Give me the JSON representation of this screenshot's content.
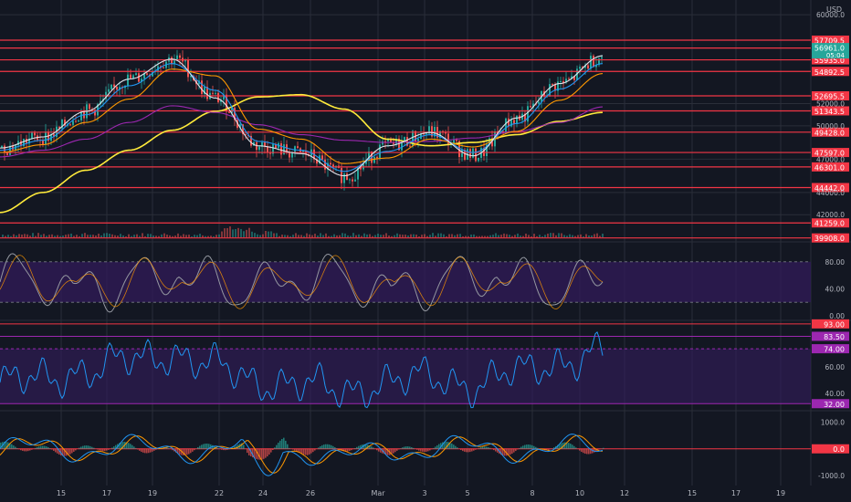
{
  "header": {
    "currency": "USD"
  },
  "colors": {
    "background": "#131722",
    "grid": "#2a2e39",
    "support_line": "#f23645",
    "ma_yellow": "#ffeb3b",
    "ma_purple": "#9c27b0",
    "ma_blue": "#2196f3",
    "ma_orange": "#ff9800",
    "ma_white": "#e0e3eb",
    "candle_up": "#26a69a",
    "candle_down": "#ef5350",
    "band_fill": "#311b59",
    "band_mid": "#5d3f9a",
    "price_badge": "#26a69a"
  },
  "chart_data": [
    {
      "type": "line",
      "panel": "price",
      "x_tick_labels": [
        "15",
        "17",
        "19",
        "22",
        "24",
        "26",
        "Mar",
        "3",
        "5",
        "8",
        "10",
        "12",
        "15",
        "17",
        "19"
      ],
      "y_tick_labels": [
        "60000.0",
        "57000.0",
        "52000.0",
        "50000.0",
        "47000.0",
        "44000.0",
        "42000.0"
      ],
      "ylim": [
        39800,
        60500
      ],
      "horizontal_levels": [
        "57709.5",
        "56997.5",
        "55935.0",
        "54892.5",
        "52695.5",
        "51343.5",
        "49428.0",
        "47597.0",
        "46301.0",
        "44442.0",
        "41259.0",
        "39908.0"
      ],
      "last_price": "56961.0",
      "countdown": "05:04",
      "series": [
        {
          "color": "#ffeb3b",
          "values": [
            42200,
            44000,
            46000,
            47800,
            49600,
            51300,
            52600,
            52800,
            51500,
            48800,
            48200,
            48500,
            49200,
            50400,
            51200
          ]
        },
        {
          "color": "#9c27b0",
          "values": [
            47200,
            47800,
            48800,
            50300,
            51800,
            51200,
            50100,
            49200,
            48700,
            48500,
            48600,
            48900,
            49500,
            50300,
            51700
          ]
        },
        {
          "color": "#ff9800",
          "values": [
            47600,
            48300,
            50300,
            52400,
            55100,
            54500,
            49700,
            48800,
            46600,
            47100,
            48800,
            48100,
            49500,
            52300,
            54700
          ]
        },
        {
          "color": "#2196f3",
          "values": [
            47800,
            48700,
            51000,
            53600,
            55600,
            53200,
            48600,
            47800,
            45900,
            47700,
            49200,
            47600,
            50200,
            53300,
            55600
          ]
        },
        {
          "color": "#e0e3eb",
          "values": [
            48000,
            49000,
            51300,
            54200,
            56000,
            52500,
            48200,
            47500,
            45500,
            48200,
            49400,
            47300,
            50700,
            53800,
            56300
          ]
        }
      ]
    },
    {
      "type": "line",
      "panel": "stochastic",
      "ylim": [
        0,
        100
      ],
      "y_tick_labels": [
        "80.00",
        "40.00",
        "0.00"
      ],
      "band": [
        20,
        80
      ]
    },
    {
      "type": "line",
      "panel": "rsi",
      "ylim": [
        28,
        95
      ],
      "y_tick_labels": [
        "60.00",
        "40.00"
      ],
      "level_badges": [
        "93.00",
        "83.50",
        "74.00",
        "32.00"
      ]
    },
    {
      "type": "line",
      "panel": "macd",
      "ylim": [
        -1300,
        1350
      ],
      "y_tick_labels": [
        "1000.0",
        "-1000.0"
      ],
      "zero_badge": "0.0"
    }
  ]
}
